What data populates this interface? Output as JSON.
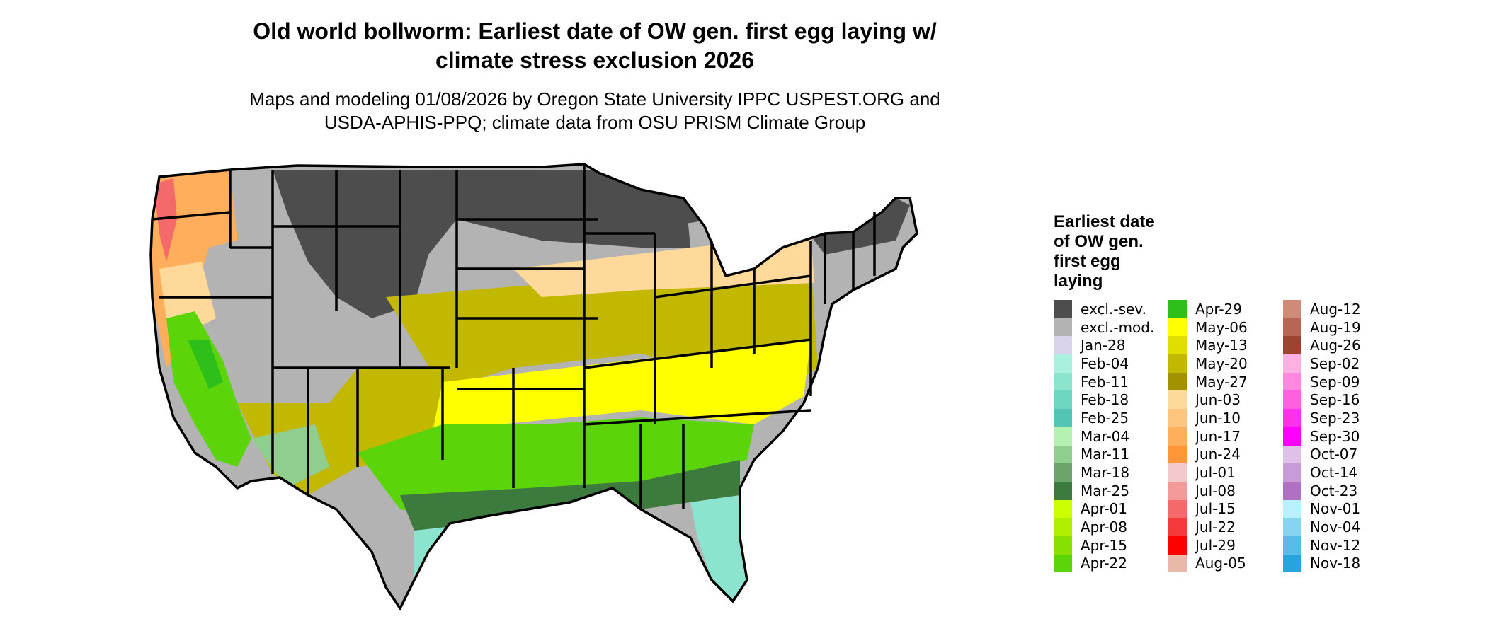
{
  "title_line1": "Old world bollworm: Earliest date of OW gen. first egg laying w/",
  "title_line2": "climate stress exclusion 2026",
  "subtitle_line1": "Maps and modeling 01/08/2026 by Oregon State University IPPC USPEST.ORG and",
  "subtitle_line2": "USDA-APHIS-PPQ; climate data from OSU PRISM Climate Group",
  "legend": {
    "title_line1": "Earliest date",
    "title_line2": "of OW gen.",
    "title_line3": "first egg",
    "title_line4": "laying",
    "items": [
      {
        "label": "excl.-sev.",
        "color": "#4d4d4d"
      },
      {
        "label": "excl.-mod.",
        "color": "#b3b3b3"
      },
      {
        "label": "Jan-28",
        "color": "#d9d2ea"
      },
      {
        "label": "Feb-04",
        "color": "#aaf0de"
      },
      {
        "label": "Feb-11",
        "color": "#8ce4cf"
      },
      {
        "label": "Feb-18",
        "color": "#6dd6c0"
      },
      {
        "label": "Feb-25",
        "color": "#52c5b5"
      },
      {
        "label": "Mar-04",
        "color": "#b4f0b2"
      },
      {
        "label": "Mar-11",
        "color": "#8fce8f"
      },
      {
        "label": "Mar-18",
        "color": "#6ba36b"
      },
      {
        "label": "Mar-25",
        "color": "#3d7a3d"
      },
      {
        "label": "Apr-01",
        "color": "#ccff00"
      },
      {
        "label": "Apr-08",
        "color": "#aef000"
      },
      {
        "label": "Apr-15",
        "color": "#88e000"
      },
      {
        "label": "Apr-22",
        "color": "#5cd40a"
      },
      {
        "label": "Apr-29",
        "color": "#2ebf1a"
      },
      {
        "label": "May-06",
        "color": "#ffff00"
      },
      {
        "label": "May-13",
        "color": "#e0dd00"
      },
      {
        "label": "May-20",
        "color": "#c2b800"
      },
      {
        "label": "May-27",
        "color": "#a39200"
      },
      {
        "label": "Jun-03",
        "color": "#ffd99a"
      },
      {
        "label": "Jun-10",
        "color": "#ffc47d"
      },
      {
        "label": "Jun-17",
        "color": "#ffae5c"
      },
      {
        "label": "Jun-24",
        "color": "#ff963a"
      },
      {
        "label": "Jul-01",
        "color": "#f4c9cc"
      },
      {
        "label": "Jul-08",
        "color": "#f49a9a"
      },
      {
        "label": "Jul-15",
        "color": "#f46a6a"
      },
      {
        "label": "Jul-22",
        "color": "#f43a3a"
      },
      {
        "label": "Jul-29",
        "color": "#ff0000"
      },
      {
        "label": "Aug-05",
        "color": "#e8b8a8"
      },
      {
        "label": "Aug-12",
        "color": "#cf8a78"
      },
      {
        "label": "Aug-19",
        "color": "#b86654"
      },
      {
        "label": "Aug-26",
        "color": "#9c4430"
      },
      {
        "label": "Sep-02",
        "color": "#ffb0e0"
      },
      {
        "label": "Sep-09",
        "color": "#ff88e0"
      },
      {
        "label": "Sep-16",
        "color": "#ff60e0"
      },
      {
        "label": "Sep-23",
        "color": "#ff30ea"
      },
      {
        "label": "Sep-30",
        "color": "#ff00ff"
      },
      {
        "label": "Oct-07",
        "color": "#dec0e8"
      },
      {
        "label": "Oct-14",
        "color": "#c89ad8"
      },
      {
        "label": "Oct-23",
        "color": "#b070c4"
      },
      {
        "label": "Nov-01",
        "color": "#b8f0ff"
      },
      {
        "label": "Nov-04",
        "color": "#86d4f0"
      },
      {
        "label": "Nov-12",
        "color": "#58bce6"
      },
      {
        "label": "Nov-18",
        "color": "#28a4dc"
      }
    ]
  },
  "map": {
    "boundary_color": "#000000"
  }
}
